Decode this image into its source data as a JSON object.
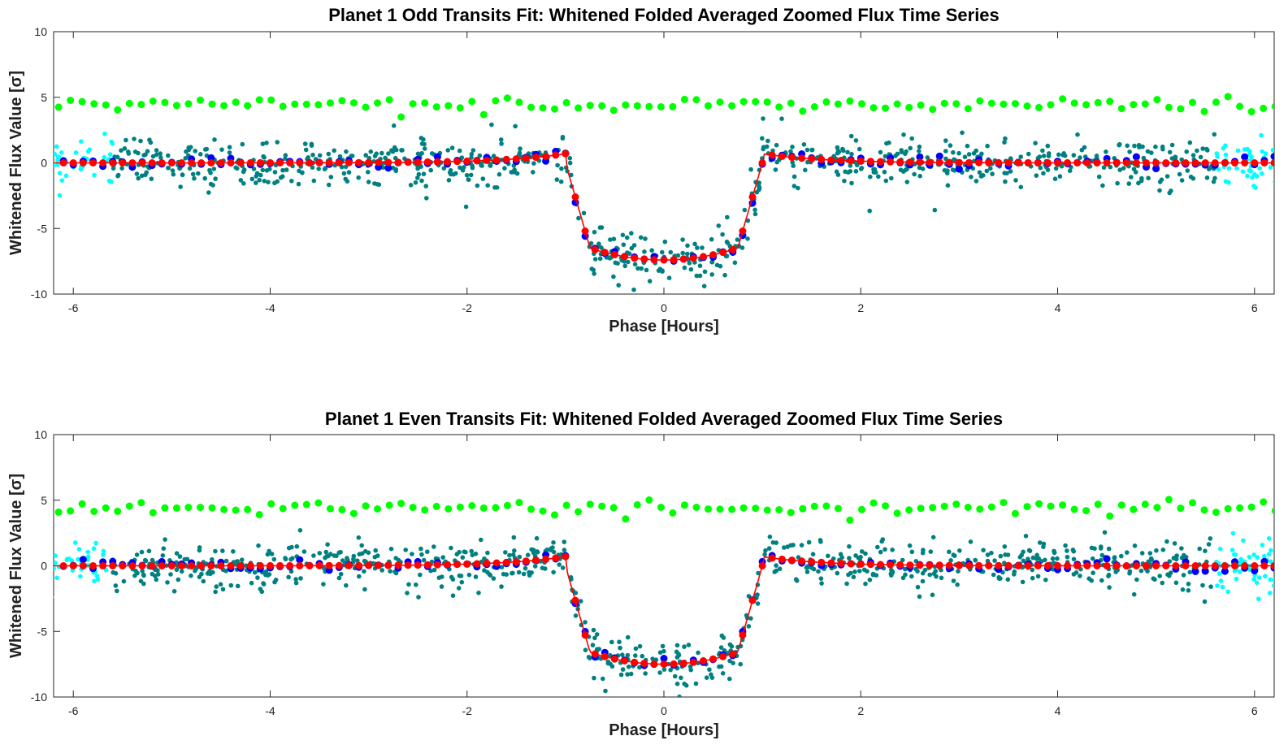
{
  "colors": {
    "background": "#ffffff",
    "axes": "#262626",
    "model_fit": "#ff0000",
    "bin_fit": "#ff0000",
    "binned_data": "#0000ff",
    "data_in_window": "#008080",
    "data_outside_window": "#00ffff",
    "residual_offset": "#00ff00"
  },
  "chart_data": [
    {
      "type": "scatter",
      "title": "Planet 1 Odd Transits Fit: Whitened Folded Averaged Zoomed Flux Time Series",
      "xlabel": "Phase [Hours]",
      "ylabel": "Whitened Flux Value [σ]",
      "xlim": [
        -6.2,
        6.2
      ],
      "ylim": [
        -10,
        10
      ],
      "xticks": [
        "-6",
        "-4",
        "-2",
        "0",
        "2",
        "4",
        "6"
      ],
      "yticks": [
        "-10",
        "-5",
        "0",
        "5",
        "10"
      ],
      "grid": false,
      "legend": "none",
      "transit_model": {
        "shape": "trapezoid",
        "ingress_start": -1.0,
        "full_start": -0.75,
        "full_end": 0.75,
        "egress_end": 1.0,
        "depth": -7.4,
        "pre_transit_rise": 0.7
      },
      "residual_level": 4.4,
      "scatter_sigma": 0.9
    },
    {
      "type": "scatter",
      "title": "Planet 1 Even Transits Fit: Whitened Folded Averaged Zoomed Flux Time Series",
      "xlabel": "Phase [Hours]",
      "ylabel": "Whitened Flux Value [σ]",
      "xlim": [
        -6.2,
        6.2
      ],
      "ylim": [
        -10,
        10
      ],
      "xticks": [
        "-6",
        "-4",
        "-2",
        "0",
        "2",
        "4",
        "6"
      ],
      "yticks": [
        "-10",
        "-5",
        "0",
        "5",
        "10"
      ],
      "grid": false,
      "legend": "none",
      "transit_model": {
        "shape": "trapezoid",
        "ingress_start": -1.0,
        "full_start": -0.75,
        "full_end": 0.75,
        "egress_end": 1.0,
        "depth": -7.5,
        "pre_transit_rise": 0.7
      },
      "residual_level": 4.4,
      "scatter_sigma": 0.9
    }
  ]
}
